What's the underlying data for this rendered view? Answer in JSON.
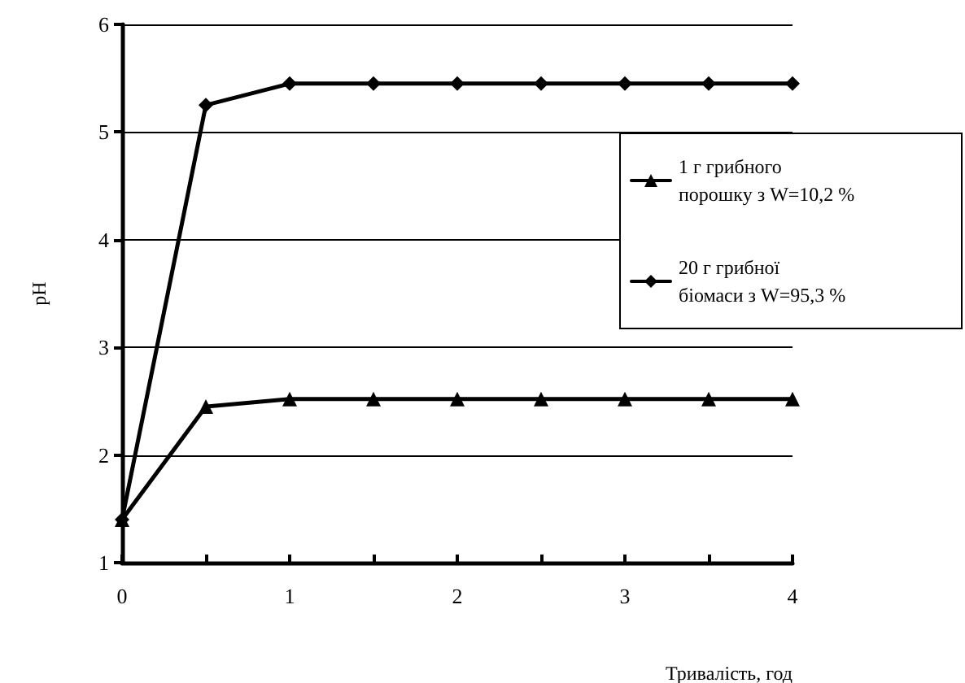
{
  "chart_data": {
    "type": "line",
    "xlabel": "Тривалість, год",
    "ylabel": "pH",
    "x": [
      0,
      0.5,
      1,
      1.5,
      2,
      2.5,
      3,
      3.5,
      4
    ],
    "series": [
      {
        "name": "1 г грибного порошку з W=10,2 %",
        "color": "#000000",
        "marker": "triangle",
        "values": [
          1.4,
          2.45,
          2.52,
          2.52,
          2.52,
          2.52,
          2.52,
          2.52,
          2.52
        ]
      },
      {
        "name": "20 г грибної біомаси з W=95,3 %",
        "color": "#000000",
        "marker": "diamond",
        "values": [
          1.4,
          5.25,
          5.45,
          5.45,
          5.45,
          5.45,
          5.45,
          5.45,
          5.45
        ]
      }
    ],
    "xlim": [
      0,
      4
    ],
    "xticks": [
      0,
      {
        "value": 0.5,
        "label": null
      },
      1,
      {
        "value": 1.5,
        "label": null
      },
      2,
      {
        "value": 2.5,
        "label": null
      },
      3,
      {
        "value": 3.5,
        "label": null
      },
      4
    ],
    "ylim": [
      1,
      6
    ],
    "yticks": [
      1,
      2,
      3,
      4,
      5,
      6
    ],
    "grid": "y",
    "legend": "right",
    "line_style": "solid"
  }
}
